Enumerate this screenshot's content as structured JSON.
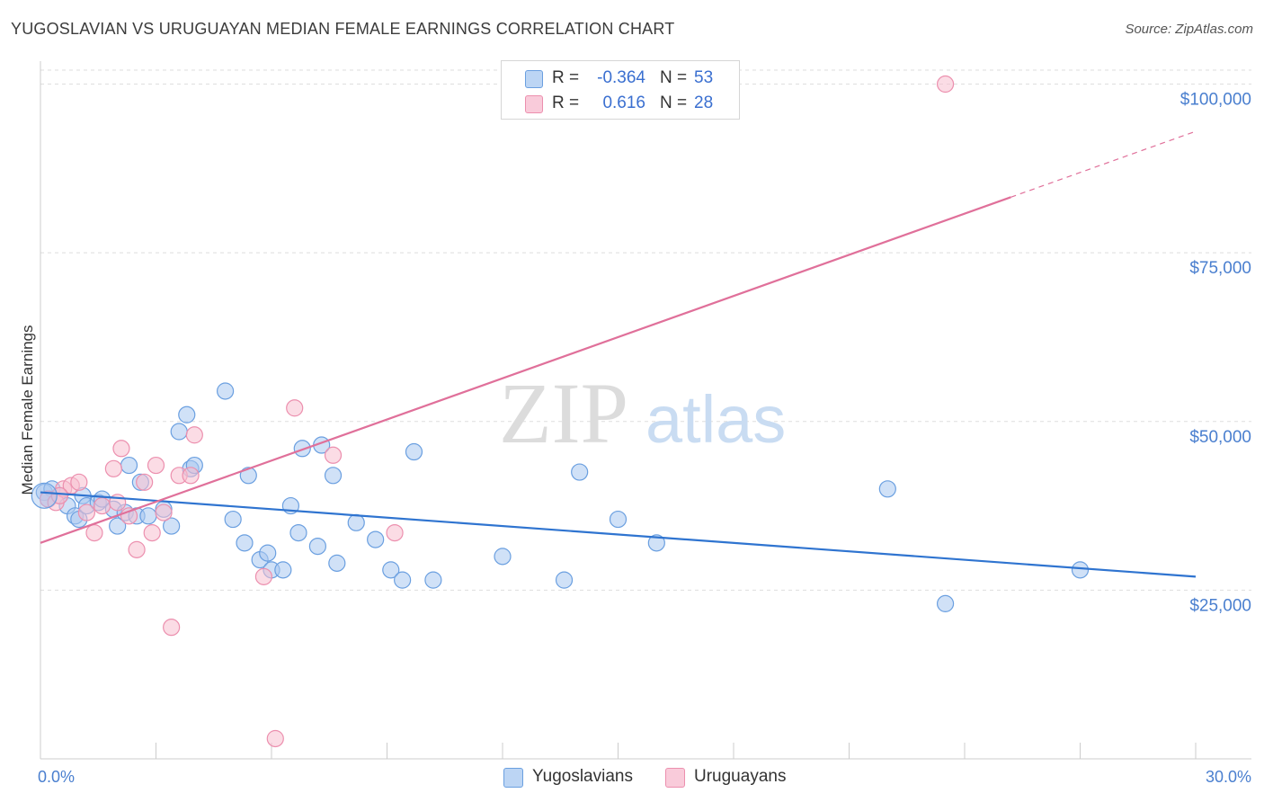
{
  "title": "YUGOSLAVIAN VS URUGUAYAN MEDIAN FEMALE EARNINGS CORRELATION CHART",
  "source": "Source: ZipAtlas.com",
  "watermark": {
    "zip": "ZIP",
    "atlas": "atlas"
  },
  "legend": {
    "rows": [
      {
        "r_label": "R =",
        "r_value": "-0.364",
        "n_label": "N =",
        "n_value": "53"
      },
      {
        "r_label": "R =",
        "r_value": "0.616",
        "n_label": "N =",
        "n_value": "28"
      }
    ]
  },
  "bottom_legend": {
    "series1": "Yugoslavians",
    "series2": "Uruguayans"
  },
  "colors": {
    "blue_fill": "#a9c8f0",
    "blue_stroke": "#6a9fe0",
    "blue_line": "#2f74d0",
    "pink_fill": "#f7bfd0",
    "pink_stroke": "#ec8fae",
    "pink_line": "#e0709a",
    "grid": "#dedede",
    "tick_text": "#4a7fcf"
  },
  "chart_data": {
    "type": "scatter",
    "title": "YUGOSLAVIAN VS URUGUAYAN MEDIAN FEMALE EARNINGS CORRELATION CHART",
    "xlabel": "",
    "ylabel": "Median Female Earnings",
    "xlim": [
      0,
      30
    ],
    "ylim": [
      0,
      105000
    ],
    "x_tick_labels": [
      "0.0%",
      "30.0%"
    ],
    "y_ticks": [
      {
        "value": 25000,
        "label": "$25,000"
      },
      {
        "value": 50000,
        "label": "$50,000"
      },
      {
        "value": 75000,
        "label": "$75,000"
      },
      {
        "value": 100000,
        "label": "$100,000"
      }
    ],
    "series": [
      {
        "name": "Yugoslavians",
        "r": -0.364,
        "n": 53,
        "trend": {
          "x0": 0,
          "y0": 39500,
          "x1": 30,
          "y1": 27000,
          "solid_to": 30
        },
        "points": [
          [
            0.1,
            39500
          ],
          [
            0.3,
            40000
          ],
          [
            0.5,
            39000
          ],
          [
            0.7,
            37500
          ],
          [
            0.9,
            36000
          ],
          [
            1.0,
            35500
          ],
          [
            1.1,
            39000
          ],
          [
            1.2,
            37500
          ],
          [
            1.5,
            38000
          ],
          [
            1.6,
            38500
          ],
          [
            1.9,
            37000
          ],
          [
            2.0,
            34500
          ],
          [
            2.2,
            36500
          ],
          [
            2.3,
            43500
          ],
          [
            2.5,
            36000
          ],
          [
            2.6,
            41000
          ],
          [
            3.2,
            37000
          ],
          [
            3.4,
            34500
          ],
          [
            3.6,
            48500
          ],
          [
            3.8,
            51000
          ],
          [
            3.9,
            43000
          ],
          [
            4.0,
            43500
          ],
          [
            4.8,
            54500
          ],
          [
            5.0,
            35500
          ],
          [
            5.3,
            32000
          ],
          [
            5.4,
            42000
          ],
          [
            5.7,
            29500
          ],
          [
            5.9,
            30500
          ],
          [
            6.0,
            28000
          ],
          [
            6.3,
            28000
          ],
          [
            6.5,
            37500
          ],
          [
            6.7,
            33500
          ],
          [
            6.8,
            46000
          ],
          [
            7.2,
            31500
          ],
          [
            7.3,
            46500
          ],
          [
            7.6,
            42000
          ],
          [
            7.7,
            29000
          ],
          [
            8.2,
            35000
          ],
          [
            8.7,
            32500
          ],
          [
            9.1,
            28000
          ],
          [
            9.4,
            26500
          ],
          [
            9.7,
            45500
          ],
          [
            10.2,
            26500
          ],
          [
            12.0,
            30000
          ],
          [
            13.6,
            26500
          ],
          [
            14.0,
            42500
          ],
          [
            15.0,
            35500
          ],
          [
            16.0,
            32000
          ],
          [
            22.0,
            40000
          ],
          [
            23.5,
            23000
          ],
          [
            27.0,
            28000
          ],
          [
            0.2,
            38500
          ],
          [
            2.8,
            36000
          ]
        ]
      },
      {
        "name": "Uruguayans",
        "r": 0.616,
        "n": 28,
        "trend": {
          "x0": 0,
          "y0": 32000,
          "x1": 30,
          "y1": 93000,
          "solid_to": 25.2
        },
        "points": [
          [
            0.2,
            38500
          ],
          [
            0.4,
            38000
          ],
          [
            0.6,
            40000
          ],
          [
            0.8,
            40500
          ],
          [
            1.0,
            41000
          ],
          [
            1.2,
            36500
          ],
          [
            1.4,
            33500
          ],
          [
            1.6,
            37500
          ],
          [
            1.9,
            43000
          ],
          [
            2.0,
            38000
          ],
          [
            2.1,
            46000
          ],
          [
            2.3,
            36000
          ],
          [
            2.5,
            31000
          ],
          [
            2.7,
            41000
          ],
          [
            2.9,
            33500
          ],
          [
            3.0,
            43500
          ],
          [
            3.2,
            36500
          ],
          [
            3.4,
            19500
          ],
          [
            3.6,
            42000
          ],
          [
            3.9,
            42000
          ],
          [
            4.0,
            48000
          ],
          [
            5.8,
            27000
          ],
          [
            6.1,
            3000
          ],
          [
            6.6,
            52000
          ],
          [
            7.6,
            45000
          ],
          [
            9.2,
            33500
          ],
          [
            23.5,
            100000
          ],
          [
            0.5,
            39000
          ]
        ]
      }
    ]
  }
}
